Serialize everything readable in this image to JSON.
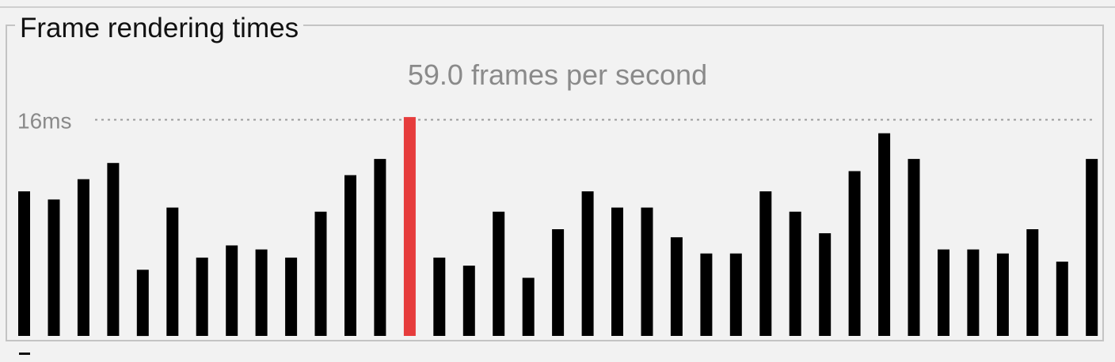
{
  "panel": {
    "title": "Frame rendering times",
    "fps_label": "59.0 frames per second"
  },
  "chart_data": {
    "type": "bar",
    "title": "59.0 frames per second",
    "xlabel": "",
    "ylabel": "",
    "unit": "ms",
    "reference_line": {
      "value": 16,
      "label": "16ms",
      "style": "dotted"
    },
    "ylim": [
      0,
      16
    ],
    "grid": false,
    "values": [
      10.7,
      10.1,
      11.6,
      12.8,
      4.9,
      9.5,
      5.8,
      6.7,
      6.4,
      5.8,
      9.2,
      11.9,
      13.1,
      16.2,
      5.8,
      5.2,
      9.2,
      4.3,
      7.9,
      10.7,
      9.5,
      9.5,
      7.3,
      6.1,
      6.1,
      10.7,
      9.2,
      7.6,
      12.2,
      15.0,
      13.1,
      6.4,
      6.4,
      6.1,
      7.9,
      5.5,
      13.1
    ],
    "highlight_index": 13,
    "colors": {
      "normal": "#000000",
      "highlight": "#e63c3c",
      "reference": "#9a9a9a"
    }
  }
}
